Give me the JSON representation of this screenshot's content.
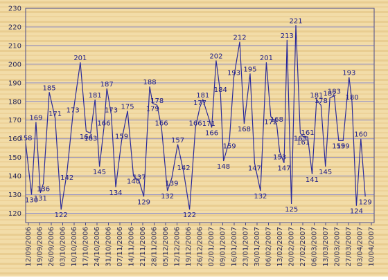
{
  "chart_data": {
    "type": "line",
    "title": "",
    "xlabel": "",
    "ylabel": "",
    "ylim": [
      115,
      230
    ],
    "yticks": [
      120,
      130,
      140,
      150,
      160,
      170,
      180,
      190,
      200,
      210,
      220,
      230
    ],
    "xtick_labels": [
      "12/09/2006",
      "19/09/2006",
      "26/09/2006",
      "03/10/2006",
      "10/10/2006",
      "17/10/2006",
      "24/10/2006",
      "31/10/2006",
      "07/11/2006",
      "14/11/2006",
      "21/11/2006",
      "28/11/2006",
      "05/12/2006",
      "12/12/2006",
      "19/12/2006",
      "26/12/2006",
      "02/01/2007",
      "09/01/2007",
      "16/01/2007",
      "23/01/2007",
      "30/01/2007",
      "06/02/2007",
      "13/02/2007",
      "20/02/2007",
      "27/02/2007",
      "06/03/2007",
      "13/03/2007",
      "20/03/2007",
      "27/03/2007",
      "03/04/2007",
      "10/04/2007"
    ],
    "grid": true,
    "colors": {
      "line": "#2a2a9a",
      "label": "#1a1a8a",
      "grid": "#8f8fc8",
      "frame": "#4a4a8a",
      "background_light": "#f2dca8",
      "background_dark": "#e2c07e"
    },
    "series": [
      {
        "x": [
          0,
          4,
          7,
          10,
          12,
          16,
          20,
          24,
          28,
          32,
          37,
          41,
          44,
          47,
          50,
          53,
          55,
          58,
          61,
          65,
          69,
          73,
          77,
          80,
          84,
          86,
          89,
          92,
          96,
          99,
          103,
          107,
          111,
          115,
          118,
          120,
          124,
          126,
          129,
          132,
          134,
          138,
          141,
          145,
          148,
          152,
          155,
          159,
          163,
          166,
          170,
          172,
          175,
          177,
          180,
          183,
          186,
          188,
          191,
          194,
          197,
          200,
          203,
          206,
          209,
          212,
          215,
          219,
          221,
          224,
          227,
          230
        ],
        "y": [
          158,
          130,
          169,
          131,
          136,
          185,
          171,
          122,
          142,
          173,
          201,
          164,
          163,
          181,
          145,
          166,
          187,
          173,
          134,
          159,
          175,
          140,
          137,
          129,
          188,
          179,
          178,
          166,
          132,
          139,
          157,
          142,
          122,
          166,
          177,
          181,
          171,
          166,
          202,
          184,
          148,
          159,
          193,
          212,
          168,
          195,
          147,
          132,
          201,
          172,
          168,
          153,
          147,
          213,
          125,
          221,
          163,
          161,
          161,
          141,
          181,
          178,
          145,
          182,
          183,
          159,
          159,
          193,
          180,
          124,
          160,
          129
        ]
      }
    ]
  }
}
